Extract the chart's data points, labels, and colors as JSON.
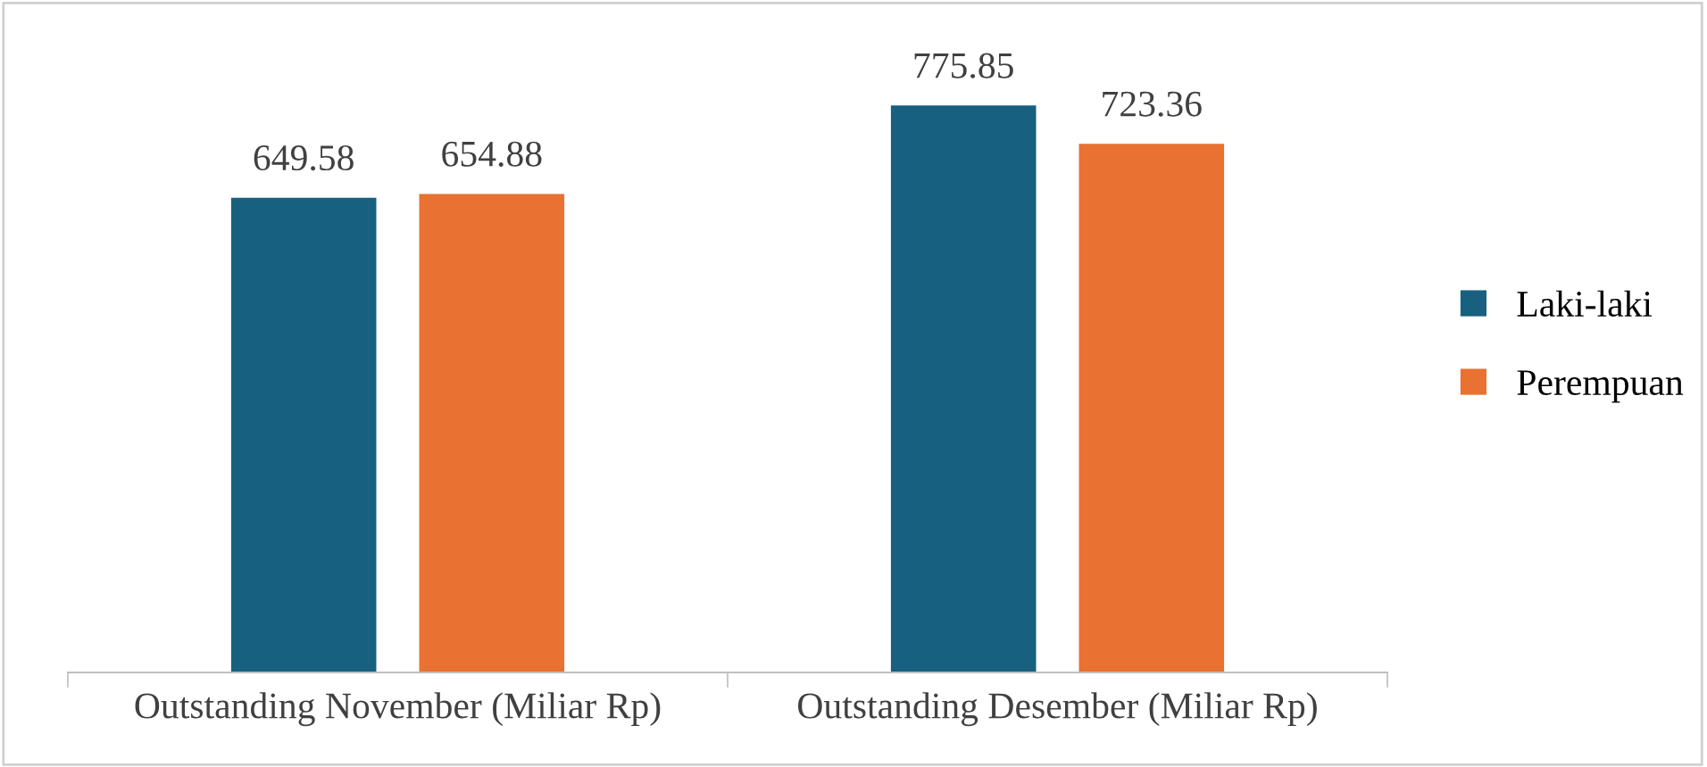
{
  "chart_data": {
    "type": "bar",
    "categories": [
      "Outstanding November (Miliar Rp)",
      "Outstanding Desember (Miliar Rp)"
    ],
    "series": [
      {
        "name": "Laki-laki",
        "color": "#17607f",
        "values": [
          649.58,
          775.85
        ]
      },
      {
        "name": "Perempuan",
        "color": "#e97132",
        "values": [
          654.88,
          723.36
        ]
      }
    ],
    "tick_labels": "x",
    "data_labels": true,
    "legend": "right",
    "grid": false
  }
}
